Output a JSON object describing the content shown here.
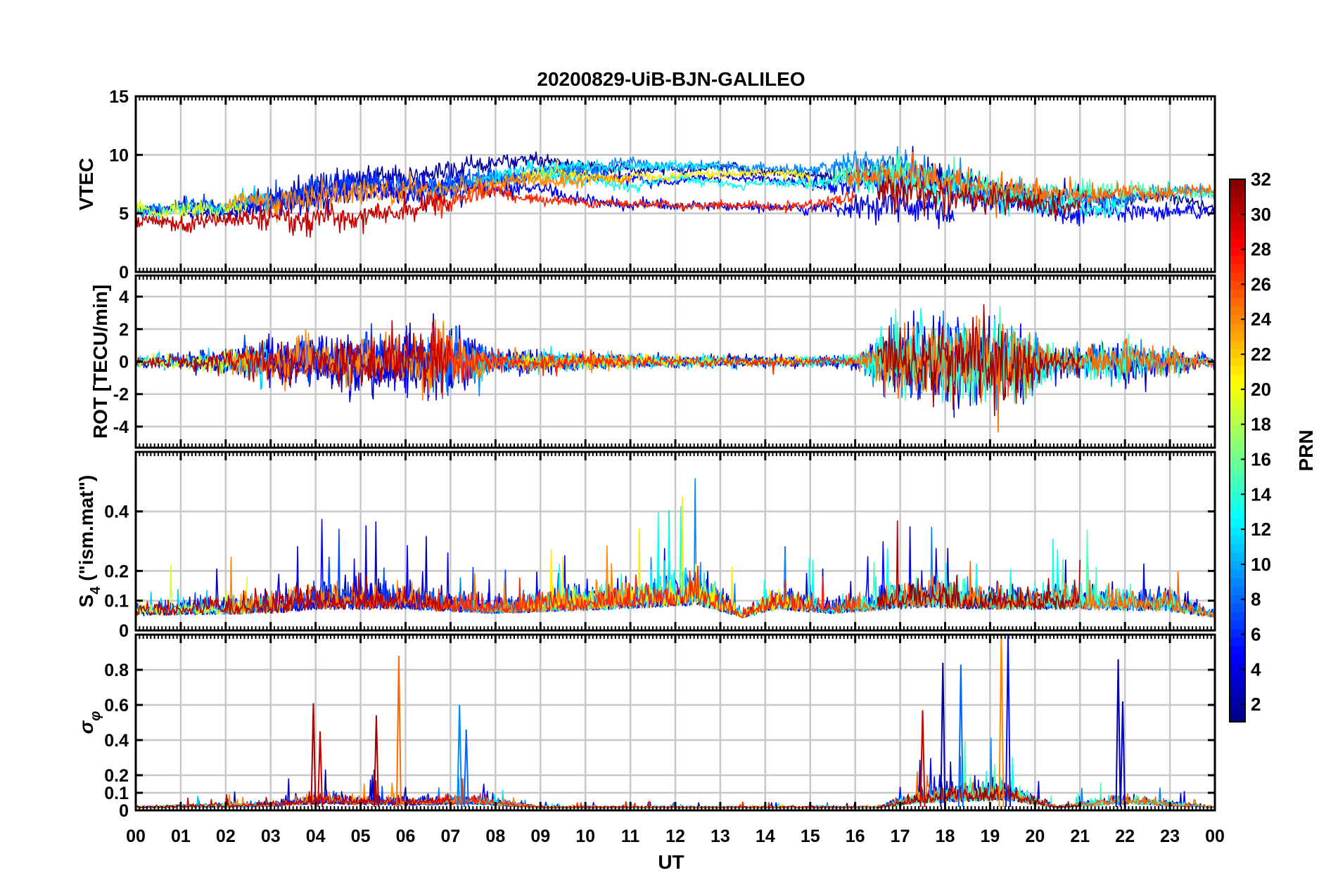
{
  "chart_data": {
    "type": "line",
    "title": "20200829-UiB-BJN-GALILEO",
    "xlabel": "UT",
    "x_tick_labels": [
      "00",
      "01",
      "02",
      "03",
      "04",
      "05",
      "06",
      "07",
      "08",
      "09",
      "10",
      "11",
      "12",
      "13",
      "14",
      "15",
      "16",
      "17",
      "18",
      "19",
      "20",
      "21",
      "22",
      "23",
      "00"
    ],
    "xlim_hours": [
      0,
      24
    ],
    "grid": true,
    "panels": [
      {
        "id": "vtec",
        "ylabel": "VTEC",
        "ylim": [
          0,
          15
        ],
        "yticks": [
          0,
          5,
          10,
          15
        ],
        "ytick_labels": [
          "0",
          "5",
          "10",
          "15"
        ],
        "activity": [
          {
            "t": 0,
            "base": 4.8,
            "amp": 0.5
          },
          {
            "t": 2,
            "base": 5.2,
            "amp": 0.6
          },
          {
            "t": 3.5,
            "base": 6.0,
            "amp": 1.2
          },
          {
            "t": 5,
            "base": 6.5,
            "amp": 1.0
          },
          {
            "t": 7,
            "base": 7.0,
            "amp": 0.8
          },
          {
            "t": 9,
            "base": 8.0,
            "amp": 0.5
          },
          {
            "t": 11,
            "base": 7.5,
            "amp": 0.4
          },
          {
            "t": 13,
            "base": 7.5,
            "amp": 0.3
          },
          {
            "t": 15,
            "base": 7.2,
            "amp": 0.4
          },
          {
            "t": 17,
            "base": 7.5,
            "amp": 1.3
          },
          {
            "t": 19,
            "base": 6.0,
            "amp": 1.0
          },
          {
            "t": 21,
            "base": 5.3,
            "amp": 0.8
          },
          {
            "t": 24,
            "base": 5.0,
            "amp": 0.4
          }
        ]
      },
      {
        "id": "rot",
        "ylabel": "ROT [TECU/min]",
        "ylim": [
          -5.3,
          5.3
        ],
        "yticks": [
          -4,
          -2,
          0,
          2,
          4
        ],
        "ytick_labels": [
          "-4",
          "-2",
          "0",
          "2",
          "4"
        ],
        "activity": [
          {
            "t": 0,
            "base": 0,
            "amp": 0.3
          },
          {
            "t": 2,
            "base": 0,
            "amp": 0.6
          },
          {
            "t": 3,
            "base": 0,
            "amp": 1.2
          },
          {
            "t": 5,
            "base": 0,
            "amp": 1.3
          },
          {
            "t": 7,
            "base": 0,
            "amp": 1.8
          },
          {
            "t": 8,
            "base": 0,
            "amp": 0.6
          },
          {
            "t": 12,
            "base": 0,
            "amp": 0.3
          },
          {
            "t": 16,
            "base": 0,
            "amp": 0.3
          },
          {
            "t": 17,
            "base": 0,
            "amp": 2.0
          },
          {
            "t": 19.3,
            "base": 0,
            "amp": 2.4
          },
          {
            "t": 20.5,
            "base": 0,
            "amp": 0.6
          },
          {
            "t": 22,
            "base": 0,
            "amp": 1.2
          },
          {
            "t": 24,
            "base": 0,
            "amp": 0.3
          }
        ]
      },
      {
        "id": "s4",
        "ylabel": "S4 (\"ism.mat\")",
        "ylabel_main": "S",
        "ylabel_sub": "4",
        "ylabel_rest": " (\"ism.mat\")",
        "ylim": [
          0,
          0.6
        ],
        "yticks": [
          0,
          0.1,
          0.2,
          0.4
        ],
        "ytick_labels": [
          "0",
          "0.1",
          "0.2",
          "0.4"
        ],
        "activity": [
          {
            "t": 0,
            "base": 0.07,
            "amp": 0.05
          },
          {
            "t": 3,
            "base": 0.08,
            "amp": 0.07
          },
          {
            "t": 4,
            "base": 0.1,
            "amp": 0.1
          },
          {
            "t": 6,
            "base": 0.1,
            "amp": 0.08
          },
          {
            "t": 8,
            "base": 0.08,
            "amp": 0.05
          },
          {
            "t": 10.5,
            "base": 0.1,
            "amp": 0.08
          },
          {
            "t": 12.5,
            "base": 0.12,
            "amp": 0.12
          },
          {
            "t": 13.5,
            "base": 0.06,
            "amp": 0.03
          },
          {
            "t": 14.3,
            "base": 0.1,
            "amp": 0.08
          },
          {
            "t": 15.5,
            "base": 0.08,
            "amp": 0.04
          },
          {
            "t": 17.5,
            "base": 0.11,
            "amp": 0.1
          },
          {
            "t": 18.5,
            "base": 0.1,
            "amp": 0.08
          },
          {
            "t": 21,
            "base": 0.1,
            "amp": 0.08
          },
          {
            "t": 23,
            "base": 0.09,
            "amp": 0.07
          },
          {
            "t": 24,
            "base": 0.06,
            "amp": 0.03
          }
        ]
      },
      {
        "id": "sigma_phi",
        "ylabel": "σφ",
        "ylabel_main": "σ",
        "ylabel_sub": "φ",
        "ylim": [
          0,
          1
        ],
        "yticks": [
          0,
          0.1,
          0.2,
          0.4,
          0.6,
          0.8
        ],
        "ytick_labels": [
          "0",
          "0.1",
          "0.2",
          "0.4",
          "0.6",
          "0.8"
        ],
        "activity": [
          {
            "t": 0,
            "base": 0.02,
            "amp": 0.01
          },
          {
            "t": 3,
            "base": 0.03,
            "amp": 0.03
          },
          {
            "t": 4,
            "base": 0.05,
            "amp": 0.06
          },
          {
            "t": 6,
            "base": 0.04,
            "amp": 0.05
          },
          {
            "t": 7.5,
            "base": 0.05,
            "amp": 0.05
          },
          {
            "t": 9,
            "base": 0.02,
            "amp": 0.01
          },
          {
            "t": 16.5,
            "base": 0.02,
            "amp": 0.01
          },
          {
            "t": 17.5,
            "base": 0.06,
            "amp": 0.08
          },
          {
            "t": 19.3,
            "base": 0.08,
            "amp": 0.12
          },
          {
            "t": 20.5,
            "base": 0.02,
            "amp": 0.01
          },
          {
            "t": 22,
            "base": 0.05,
            "amp": 0.06
          },
          {
            "t": 24,
            "base": 0.02,
            "amp": 0.01
          }
        ],
        "spikes": [
          {
            "t": 3.95,
            "v": 0.61,
            "prn": 31
          },
          {
            "t": 4.1,
            "v": 0.45,
            "prn": 30
          },
          {
            "t": 5.35,
            "v": 0.54,
            "prn": 31
          },
          {
            "t": 5.85,
            "v": 0.88,
            "prn": 25
          },
          {
            "t": 7.2,
            "v": 0.6,
            "prn": 9
          },
          {
            "t": 7.35,
            "v": 0.46,
            "prn": 8
          },
          {
            "t": 17.5,
            "v": 0.57,
            "prn": 30
          },
          {
            "t": 17.95,
            "v": 0.84,
            "prn": 2
          },
          {
            "t": 18.35,
            "v": 0.83,
            "prn": 8
          },
          {
            "t": 19.25,
            "v": 1.0,
            "prn": 24
          },
          {
            "t": 19.4,
            "v": 1.0,
            "prn": 5
          },
          {
            "t": 21.85,
            "v": 0.86,
            "prn": 2
          },
          {
            "t": 21.95,
            "v": 0.62,
            "prn": 3
          }
        ]
      }
    ],
    "series": [
      {
        "prn": 2,
        "t0": 0,
        "t1": 24
      },
      {
        "prn": 4,
        "t0": 1,
        "t1": 18.2
      },
      {
        "prn": 5,
        "t0": 3.5,
        "t1": 24
      },
      {
        "prn": 7,
        "t0": 0,
        "t1": 10.5
      },
      {
        "prn": 9,
        "t0": 6.5,
        "t1": 24
      },
      {
        "prn": 11,
        "t0": 0,
        "t1": 3
      },
      {
        "prn": 12,
        "t0": 7.5,
        "t1": 13
      },
      {
        "prn": 13,
        "t0": 9,
        "t1": 22
      },
      {
        "prn": 15,
        "t0": 15.5,
        "t1": 24
      },
      {
        "prn": 19,
        "t0": 0,
        "t1": 2.5
      },
      {
        "prn": 21,
        "t0": 8.5,
        "t1": 15
      },
      {
        "prn": 24,
        "t0": 2,
        "t1": 11
      },
      {
        "prn": 25,
        "t0": 15.8,
        "t1": 24
      },
      {
        "prn": 27,
        "t0": 6.5,
        "t1": 16
      },
      {
        "prn": 30,
        "t0": 0,
        "t1": 7
      },
      {
        "prn": 31,
        "t0": 16.5,
        "t1": 21
      }
    ],
    "colorbar": {
      "label": "PRN",
      "range": [
        1,
        32
      ],
      "ticks": [
        2,
        4,
        6,
        8,
        10,
        12,
        14,
        16,
        18,
        20,
        22,
        24,
        26,
        28,
        30,
        32
      ],
      "tick_labels": [
        "2",
        "4",
        "6",
        "8",
        "10",
        "12",
        "14",
        "16",
        "18",
        "20",
        "22",
        "24",
        "26",
        "28",
        "30",
        "32"
      ],
      "colormap": "jet"
    }
  }
}
